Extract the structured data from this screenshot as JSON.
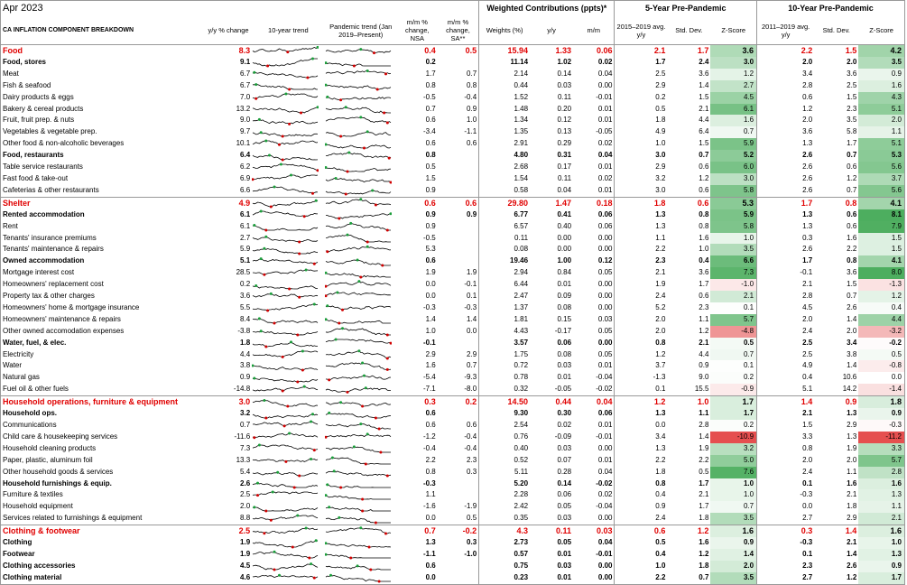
{
  "date": "Apr 2023",
  "header": {
    "weighted": "Weighted Contributions (ppts)*",
    "five_year": "5-Year Pre-Pandemic",
    "ten_year": "10-Year Pre-Pandemic",
    "title": "CA INFLATION COMPONENT BREAKDOWN",
    "col_yy": "y/y % change",
    "col_trend10": "10-year trend",
    "col_trendp": "Pandemic trend (Jan 2019–Present)",
    "col_mm_nsa": "m/m % change, NSA",
    "col_mm_sa": "m/m % change, SA**",
    "col_weights": "Weights (%)",
    "col_wyy": "y/y",
    "col_wmm": "m/m",
    "col_avg5": "2015–2019 avg. y/y",
    "col_sd5": "Std. Dev.",
    "col_z5": "Z-Score",
    "col_avg10": "2011–2019 avg. y/y",
    "col_sd10": "Std. Dev.",
    "col_z10": "Z-Score"
  },
  "colors": {
    "category": "#e00000",
    "pos_z": "#2ea043",
    "neg_z": "#e03030",
    "spark": "#000000",
    "spark_red": "#d00000",
    "spark_green": "#1a9e3a"
  },
  "rows": [
    {
      "name": "Food",
      "lv": "cat",
      "yy": "8.3",
      "mm": "0.4",
      "mmsa": "0.5",
      "w": "15.94",
      "wyy": "1.33",
      "wmm": "0.06",
      "a5": "2.1",
      "s5": "1.7",
      "z5": "3.6",
      "a10": "2.2",
      "s10": "1.5",
      "z10": "4.2"
    },
    {
      "name": "Food, stores",
      "lv": "sub",
      "yy": "9.1",
      "mm": "0.2",
      "mmsa": "",
      "w": "11.14",
      "wyy": "1.02",
      "wmm": "0.02",
      "a5": "1.7",
      "s5": "2.4",
      "z5": "3.0",
      "a10": "2.0",
      "s10": "2.0",
      "z10": "3.5"
    },
    {
      "name": "Meat",
      "lv": "item",
      "yy": "6.7",
      "mm": "1.7",
      "mmsa": "0.7",
      "w": "2.14",
      "wyy": "0.14",
      "wmm": "0.04",
      "a5": "2.5",
      "s5": "3.6",
      "z5": "1.2",
      "a10": "3.4",
      "s10": "3.6",
      "z10": "0.9"
    },
    {
      "name": "Fish & seafood",
      "lv": "item",
      "yy": "6.7",
      "mm": "0.8",
      "mmsa": "0.8",
      "w": "0.44",
      "wyy": "0.03",
      "wmm": "0.00",
      "a5": "2.9",
      "s5": "1.4",
      "z5": "2.7",
      "a10": "2.8",
      "s10": "2.5",
      "z10": "1.6"
    },
    {
      "name": "Dairy products & eggs",
      "lv": "item",
      "yy": "7.0",
      "mm": "-0.5",
      "mmsa": "-0.4",
      "w": "1.52",
      "wyy": "0.11",
      "wmm": "-0.01",
      "a5": "0.2",
      "s5": "1.5",
      "z5": "4.5",
      "a10": "0.6",
      "s10": "1.5",
      "z10": "4.3"
    },
    {
      "name": "Bakery & cereal products",
      "lv": "item",
      "yy": "13.2",
      "mm": "0.7",
      "mmsa": "0.9",
      "w": "1.48",
      "wyy": "0.20",
      "wmm": "0.01",
      "a5": "0.5",
      "s5": "2.1",
      "z5": "6.1",
      "a10": "1.2",
      "s10": "2.3",
      "z10": "5.1"
    },
    {
      "name": "Fruit, fruit prep. & nuts",
      "lv": "item",
      "yy": "9.0",
      "mm": "0.6",
      "mmsa": "1.0",
      "w": "1.34",
      "wyy": "0.12",
      "wmm": "0.01",
      "a5": "1.8",
      "s5": "4.4",
      "z5": "1.6",
      "a10": "2.0",
      "s10": "3.5",
      "z10": "2.0"
    },
    {
      "name": "Vegetables & vegetable prep.",
      "lv": "item",
      "yy": "9.7",
      "mm": "-3.4",
      "mmsa": "-1.1",
      "w": "1.35",
      "wyy": "0.13",
      "wmm": "-0.05",
      "a5": "4.9",
      "s5": "6.4",
      "z5": "0.7",
      "a10": "3.6",
      "s10": "5.8",
      "z10": "1.1"
    },
    {
      "name": "Other food & non-alcoholic beverages",
      "lv": "item",
      "yy": "10.1",
      "mm": "0.6",
      "mmsa": "0.6",
      "w": "2.91",
      "wyy": "0.29",
      "wmm": "0.02",
      "a5": "1.0",
      "s5": "1.5",
      "z5": "5.9",
      "a10": "1.3",
      "s10": "1.7",
      "z10": "5.1"
    },
    {
      "name": "Food, restaurants",
      "lv": "sub",
      "yy": "6.4",
      "mm": "0.8",
      "mmsa": "",
      "w": "4.80",
      "wyy": "0.31",
      "wmm": "0.04",
      "a5": "3.0",
      "s5": "0.7",
      "z5": "5.2",
      "a10": "2.6",
      "s10": "0.7",
      "z10": "5.3"
    },
    {
      "name": "Table service restaurants",
      "lv": "item",
      "yy": "6.2",
      "mm": "0.5",
      "mmsa": "",
      "w": "2.68",
      "wyy": "0.17",
      "wmm": "0.01",
      "a5": "2.9",
      "s5": "0.6",
      "z5": "6.0",
      "a10": "2.6",
      "s10": "0.6",
      "z10": "5.6"
    },
    {
      "name": "Fast food & take-out",
      "lv": "item",
      "yy": "6.9",
      "mm": "1.5",
      "mmsa": "",
      "w": "1.54",
      "wyy": "0.11",
      "wmm": "0.02",
      "a5": "3.2",
      "s5": "1.2",
      "z5": "3.0",
      "a10": "2.6",
      "s10": "1.2",
      "z10": "3.7"
    },
    {
      "name": "Cafeterias & other restaurants",
      "lv": "item",
      "yy": "6.6",
      "mm": "0.9",
      "mmsa": "",
      "w": "0.58",
      "wyy": "0.04",
      "wmm": "0.01",
      "a5": "3.0",
      "s5": "0.6",
      "z5": "5.8",
      "a10": "2.6",
      "s10": "0.7",
      "z10": "5.6"
    },
    {
      "name": "Shelter",
      "lv": "cat",
      "yy": "4.9",
      "mm": "0.6",
      "mmsa": "0.6",
      "w": "29.80",
      "wyy": "1.47",
      "wmm": "0.18",
      "a5": "1.8",
      "s5": "0.6",
      "z5": "5.3",
      "a10": "1.7",
      "s10": "0.8",
      "z10": "4.1"
    },
    {
      "name": "Rented accommodation",
      "lv": "sub",
      "yy": "6.1",
      "mm": "0.9",
      "mmsa": "0.9",
      "w": "6.77",
      "wyy": "0.41",
      "wmm": "0.06",
      "a5": "1.3",
      "s5": "0.8",
      "z5": "5.9",
      "a10": "1.3",
      "s10": "0.6",
      "z10": "8.1"
    },
    {
      "name": "Rent",
      "lv": "item",
      "yy": "6.1",
      "mm": "0.9",
      "mmsa": "",
      "w": "6.57",
      "wyy": "0.40",
      "wmm": "0.06",
      "a5": "1.3",
      "s5": "0.8",
      "z5": "5.8",
      "a10": "1.3",
      "s10": "0.6",
      "z10": "7.9"
    },
    {
      "name": "Tenants' insurance premiums",
      "lv": "item",
      "yy": "2.7",
      "mm": "-0.5",
      "mmsa": "",
      "w": "0.11",
      "wyy": "0.00",
      "wmm": "0.00",
      "a5": "1.1",
      "s5": "1.6",
      "z5": "1.0",
      "a10": "0.3",
      "s10": "1.6",
      "z10": "1.5"
    },
    {
      "name": "Tenants' maintenance & repairs",
      "lv": "item",
      "yy": "5.9",
      "mm": "5.3",
      "mmsa": "",
      "w": "0.08",
      "wyy": "0.00",
      "wmm": "0.00",
      "a5": "2.2",
      "s5": "1.0",
      "z5": "3.5",
      "a10": "2.6",
      "s10": "2.2",
      "z10": "1.5"
    },
    {
      "name": "Owned accommodation",
      "lv": "sub",
      "yy": "5.1",
      "mm": "0.6",
      "mmsa": "",
      "w": "19.46",
      "wyy": "1.00",
      "wmm": "0.12",
      "a5": "2.3",
      "s5": "0.4",
      "z5": "6.6",
      "a10": "1.7",
      "s10": "0.8",
      "z10": "4.1"
    },
    {
      "name": "Mortgage interest cost",
      "lv": "item",
      "yy": "28.5",
      "mm": "1.9",
      "mmsa": "1.9",
      "w": "2.94",
      "wyy": "0.84",
      "wmm": "0.05",
      "a5": "2.1",
      "s5": "3.6",
      "z5": "7.3",
      "a10": "-0.1",
      "s10": "3.6",
      "z10": "8.0"
    },
    {
      "name": "Homeowners' replacement cost",
      "lv": "item",
      "yy": "0.2",
      "mm": "0.0",
      "mmsa": "-0.1",
      "w": "6.44",
      "wyy": "0.01",
      "wmm": "0.00",
      "a5": "1.9",
      "s5": "1.7",
      "z5": "-1.0",
      "a10": "2.1",
      "s10": "1.5",
      "z10": "-1.3"
    },
    {
      "name": "Property tax & other charges",
      "lv": "item",
      "yy": "3.6",
      "mm": "0.0",
      "mmsa": "0.1",
      "w": "2.47",
      "wyy": "0.09",
      "wmm": "0.00",
      "a5": "2.4",
      "s5": "0.6",
      "z5": "2.1",
      "a10": "2.8",
      "s10": "0.7",
      "z10": "1.2"
    },
    {
      "name": "Homeowners' home & mortgage insurance",
      "lv": "item",
      "yy": "5.5",
      "mm": "-0.3",
      "mmsa": "-0.3",
      "w": "1.37",
      "wyy": "0.08",
      "wmm": "0.00",
      "a5": "5.2",
      "s5": "2.3",
      "z5": "0.1",
      "a10": "4.5",
      "s10": "2.6",
      "z10": "0.4"
    },
    {
      "name": "Homeowners' maintenance & repairs",
      "lv": "item",
      "yy": "8.4",
      "mm": "1.4",
      "mmsa": "1.4",
      "w": "1.81",
      "wyy": "0.15",
      "wmm": "0.03",
      "a5": "2.0",
      "s5": "1.1",
      "z5": "5.7",
      "a10": "2.0",
      "s10": "1.4",
      "z10": "4.4"
    },
    {
      "name": "Other owned accomodation expenses",
      "lv": "item",
      "yy": "-3.8",
      "mm": "1.0",
      "mmsa": "0.0",
      "w": "4.43",
      "wyy": "-0.17",
      "wmm": "0.05",
      "a5": "2.0",
      "s5": "1.2",
      "z5": "-4.8",
      "a10": "2.4",
      "s10": "2.0",
      "z10": "-3.2"
    },
    {
      "name": "Water, fuel, & elec.",
      "lv": "sub",
      "yy": "1.8",
      "mm": "-0.1",
      "mmsa": "",
      "w": "3.57",
      "wyy": "0.06",
      "wmm": "0.00",
      "a5": "0.8",
      "s5": "2.1",
      "z5": "0.5",
      "a10": "2.5",
      "s10": "3.4",
      "z10": "-0.2"
    },
    {
      "name": "Electricity",
      "lv": "item",
      "yy": "4.4",
      "mm": "2.9",
      "mmsa": "2.9",
      "w": "1.75",
      "wyy": "0.08",
      "wmm": "0.05",
      "a5": "1.2",
      "s5": "4.4",
      "z5": "0.7",
      "a10": "2.5",
      "s10": "3.8",
      "z10": "0.5"
    },
    {
      "name": "Water",
      "lv": "item",
      "yy": "3.8",
      "mm": "1.6",
      "mmsa": "0.7",
      "w": "0.72",
      "wyy": "0.03",
      "wmm": "0.01",
      "a5": "3.7",
      "s5": "0.9",
      "z5": "0.1",
      "a10": "4.9",
      "s10": "1.4",
      "z10": "-0.8"
    },
    {
      "name": "Natural gas",
      "lv": "item",
      "yy": "0.9",
      "mm": "-5.4",
      "mmsa": "-9.3",
      "w": "0.78",
      "wyy": "0.01",
      "wmm": "-0.04",
      "a5": "-1.3",
      "s5": "9.0",
      "z5": "0.2",
      "a10": "0.4",
      "s10": "10.6",
      "z10": "0.0"
    },
    {
      "name": "Fuel oil & other fuels",
      "lv": "item",
      "yy": "-14.8",
      "mm": "-7.1",
      "mmsa": "-8.0",
      "w": "0.32",
      "wyy": "-0.05",
      "wmm": "-0.02",
      "a5": "0.1",
      "s5": "15.5",
      "z5": "-0.9",
      "a10": "5.1",
      "s10": "14.2",
      "z10": "-1.4"
    },
    {
      "name": "Household operations, furniture & equipment",
      "lv": "cat",
      "yy": "3.0",
      "mm": "0.3",
      "mmsa": "0.2",
      "w": "14.50",
      "wyy": "0.44",
      "wmm": "0.04",
      "a5": "1.2",
      "s5": "1.0",
      "z5": "1.7",
      "a10": "1.4",
      "s10": "0.9",
      "z10": "1.8"
    },
    {
      "name": "Household ops.",
      "lv": "sub",
      "yy": "3.2",
      "mm": "0.6",
      "mmsa": "",
      "w": "9.30",
      "wyy": "0.30",
      "wmm": "0.06",
      "a5": "1.3",
      "s5": "1.1",
      "z5": "1.7",
      "a10": "2.1",
      "s10": "1.3",
      "z10": "0.9"
    },
    {
      "name": "Communications",
      "lv": "item",
      "yy": "0.7",
      "mm": "0.6",
      "mmsa": "0.6",
      "w": "2.54",
      "wyy": "0.02",
      "wmm": "0.01",
      "a5": "0.0",
      "s5": "2.8",
      "z5": "0.2",
      "a10": "1.5",
      "s10": "2.9",
      "z10": "-0.3"
    },
    {
      "name": "Child care & housekeeping services",
      "lv": "item",
      "yy": "-11.6",
      "mm": "-1.2",
      "mmsa": "-0.4",
      "w": "0.76",
      "wyy": "-0.09",
      "wmm": "-0.01",
      "a5": "3.4",
      "s5": "1.4",
      "z5": "-10.9",
      "a10": "3.3",
      "s10": "1.3",
      "z10": "-11.2"
    },
    {
      "name": "Household cleaning products",
      "lv": "item",
      "yy": "7.3",
      "mm": "-0.4",
      "mmsa": "-0.4",
      "w": "0.40",
      "wyy": "0.03",
      "wmm": "0.00",
      "a5": "1.3",
      "s5": "1.9",
      "z5": "3.2",
      "a10": "0.8",
      "s10": "1.9",
      "z10": "3.3"
    },
    {
      "name": "Paper, plastic, aluminum foil",
      "lv": "item",
      "yy": "13.3",
      "mm": "2.2",
      "mmsa": "2.3",
      "w": "0.52",
      "wyy": "0.07",
      "wmm": "0.01",
      "a5": "2.2",
      "s5": "2.2",
      "z5": "5.0",
      "a10": "2.0",
      "s10": "2.0",
      "z10": "5.7"
    },
    {
      "name": "Other household goods & services",
      "lv": "item",
      "yy": "5.4",
      "mm": "0.8",
      "mmsa": "0.3",
      "w": "5.11",
      "wyy": "0.28",
      "wmm": "0.04",
      "a5": "1.8",
      "s5": "0.5",
      "z5": "7.6",
      "a10": "2.4",
      "s10": "1.1",
      "z10": "2.8"
    },
    {
      "name": "Household furnishings & equip.",
      "lv": "sub",
      "yy": "2.6",
      "mm": "-0.3",
      "mmsa": "",
      "w": "5.20",
      "wyy": "0.14",
      "wmm": "-0.02",
      "a5": "0.8",
      "s5": "1.7",
      "z5": "1.0",
      "a10": "0.1",
      "s10": "1.6",
      "z10": "1.6"
    },
    {
      "name": "Furniture & textiles",
      "lv": "item",
      "yy": "2.5",
      "mm": "1.1",
      "mmsa": "",
      "w": "2.28",
      "wyy": "0.06",
      "wmm": "0.02",
      "a5": "0.4",
      "s5": "2.1",
      "z5": "1.0",
      "a10": "-0.3",
      "s10": "2.1",
      "z10": "1.3"
    },
    {
      "name": "Household equipment",
      "lv": "item",
      "yy": "2.0",
      "mm": "-1.6",
      "mmsa": "-1.9",
      "w": "2.42",
      "wyy": "0.05",
      "wmm": "-0.04",
      "a5": "0.9",
      "s5": "1.7",
      "z5": "0.7",
      "a10": "0.0",
      "s10": "1.8",
      "z10": "1.1"
    },
    {
      "name": "Services related to furnishings & equipment",
      "lv": "item",
      "yy": "8.8",
      "mm": "0.0",
      "mmsa": "0.5",
      "w": "0.35",
      "wyy": "0.03",
      "wmm": "0.00",
      "a5": "2.4",
      "s5": "1.8",
      "z5": "3.5",
      "a10": "2.7",
      "s10": "2.9",
      "z10": "2.1"
    },
    {
      "name": "Clothing & footwear",
      "lv": "cat",
      "yy": "2.5",
      "mm": "0.7",
      "mmsa": "-0.2",
      "w": "4.3",
      "wyy": "0.11",
      "wmm": "0.03",
      "a5": "0.6",
      "s5": "1.2",
      "z5": "1.6",
      "a10": "0.3",
      "s10": "1.4",
      "z10": "1.6"
    },
    {
      "name": "Clothing",
      "lv": "sub",
      "yy": "1.9",
      "mm": "1.3",
      "mmsa": "0.3",
      "w": "2.73",
      "wyy": "0.05",
      "wmm": "0.04",
      "a5": "0.5",
      "s5": "1.6",
      "z5": "0.9",
      "a10": "-0.3",
      "s10": "2.1",
      "z10": "1.0"
    },
    {
      "name": "Footwear",
      "lv": "sub",
      "yy": "1.9",
      "mm": "-1.1",
      "mmsa": "-1.0",
      "w": "0.57",
      "wyy": "0.01",
      "wmm": "-0.01",
      "a5": "0.4",
      "s5": "1.2",
      "z5": "1.4",
      "a10": "0.1",
      "s10": "1.4",
      "z10": "1.3"
    },
    {
      "name": "Clothing accessories",
      "lv": "sub",
      "yy": "4.5",
      "mm": "0.6",
      "mmsa": "",
      "w": "0.75",
      "wyy": "0.03",
      "wmm": "0.00",
      "a5": "1.0",
      "s5": "1.8",
      "z5": "2.0",
      "a10": "2.3",
      "s10": "2.6",
      "z10": "0.9"
    },
    {
      "name": "Clothing material",
      "lv": "sub",
      "yy": "4.6",
      "mm": "0.0",
      "mmsa": "",
      "w": "0.23",
      "wyy": "0.01",
      "wmm": "0.00",
      "a5": "2.2",
      "s5": "0.7",
      "z5": "3.5",
      "a10": "2.7",
      "s10": "1.2",
      "z10": "1.7"
    }
  ]
}
